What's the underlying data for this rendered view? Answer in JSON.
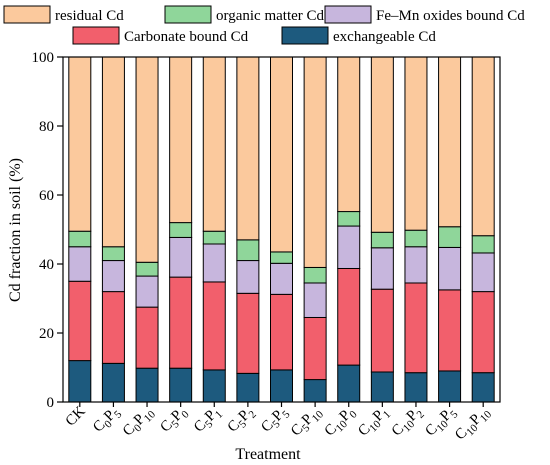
{
  "chart_data": {
    "type": "bar",
    "stacked": true,
    "ylabel": "Cd fraction in soil (%)",
    "xlabel": "Treatment",
    "ylim": [
      0,
      100
    ],
    "yticks": [
      0,
      20,
      40,
      60,
      80,
      100
    ],
    "legend": "top",
    "categories": [
      {
        "base": "CK",
        "sub1": "",
        "sub2": ""
      },
      {
        "base": "C",
        "sub1": "0",
        "p": "P",
        "sub2": "5"
      },
      {
        "base": "C",
        "sub1": "0",
        "p": "P",
        "sub2": "10"
      },
      {
        "base": "C",
        "sub1": "5",
        "p": "P",
        "sub2": "0"
      },
      {
        "base": "C",
        "sub1": "5",
        "p": "P",
        "sub2": "1"
      },
      {
        "base": "C",
        "sub1": "5",
        "p": "P",
        "sub2": "2"
      },
      {
        "base": "C",
        "sub1": "5",
        "p": "P",
        "sub2": "5"
      },
      {
        "base": "C",
        "sub1": "5",
        "p": "P",
        "sub2": "10"
      },
      {
        "base": "C",
        "sub1": "10",
        "p": "P",
        "sub2": "0"
      },
      {
        "base": "C",
        "sub1": "10",
        "p": "P",
        "sub2": "1"
      },
      {
        "base": "C",
        "sub1": "10",
        "p": "P",
        "sub2": "2"
      },
      {
        "base": "C",
        "sub1": "10",
        "p": "P",
        "sub2": "5"
      },
      {
        "base": "C",
        "sub1": "10",
        "p": "P",
        "sub2": "10"
      }
    ],
    "series": [
      {
        "name": "exchangeable Cd",
        "color": "#1d5a7e",
        "values": [
          12,
          11.2,
          9.8,
          9.8,
          9.3,
          8.3,
          9.3,
          6.5,
          10.7,
          8.7,
          8.5,
          9,
          8.5
        ]
      },
      {
        "name": "Carbonate bound Cd",
        "color": "#f25f6c",
        "values": [
          23,
          20.8,
          17.7,
          26.4,
          25.5,
          23.2,
          21.9,
          18,
          28,
          24,
          26,
          23.5,
          23.5
        ]
      },
      {
        "name": "Fe–Mn oxides bound Cd",
        "color": "#c7b6dd",
        "values": [
          10,
          9,
          9,
          11.5,
          11,
          9.5,
          9,
          10,
          12.3,
          12,
          10.5,
          12.3,
          11.2
        ]
      },
      {
        "name": "organic matter Cd",
        "color": "#8fd69a",
        "values": [
          4.5,
          4,
          4,
          4.3,
          3.7,
          6,
          3.3,
          4.5,
          4.2,
          4.5,
          4.8,
          6,
          5
        ]
      },
      {
        "name": "residual Cd",
        "color": "#fbc99d",
        "values": [
          50.5,
          55,
          59.5,
          48,
          50.5,
          53,
          56.5,
          61,
          44.8,
          50.8,
          50.2,
          49.2,
          51.8
        ]
      }
    ]
  }
}
